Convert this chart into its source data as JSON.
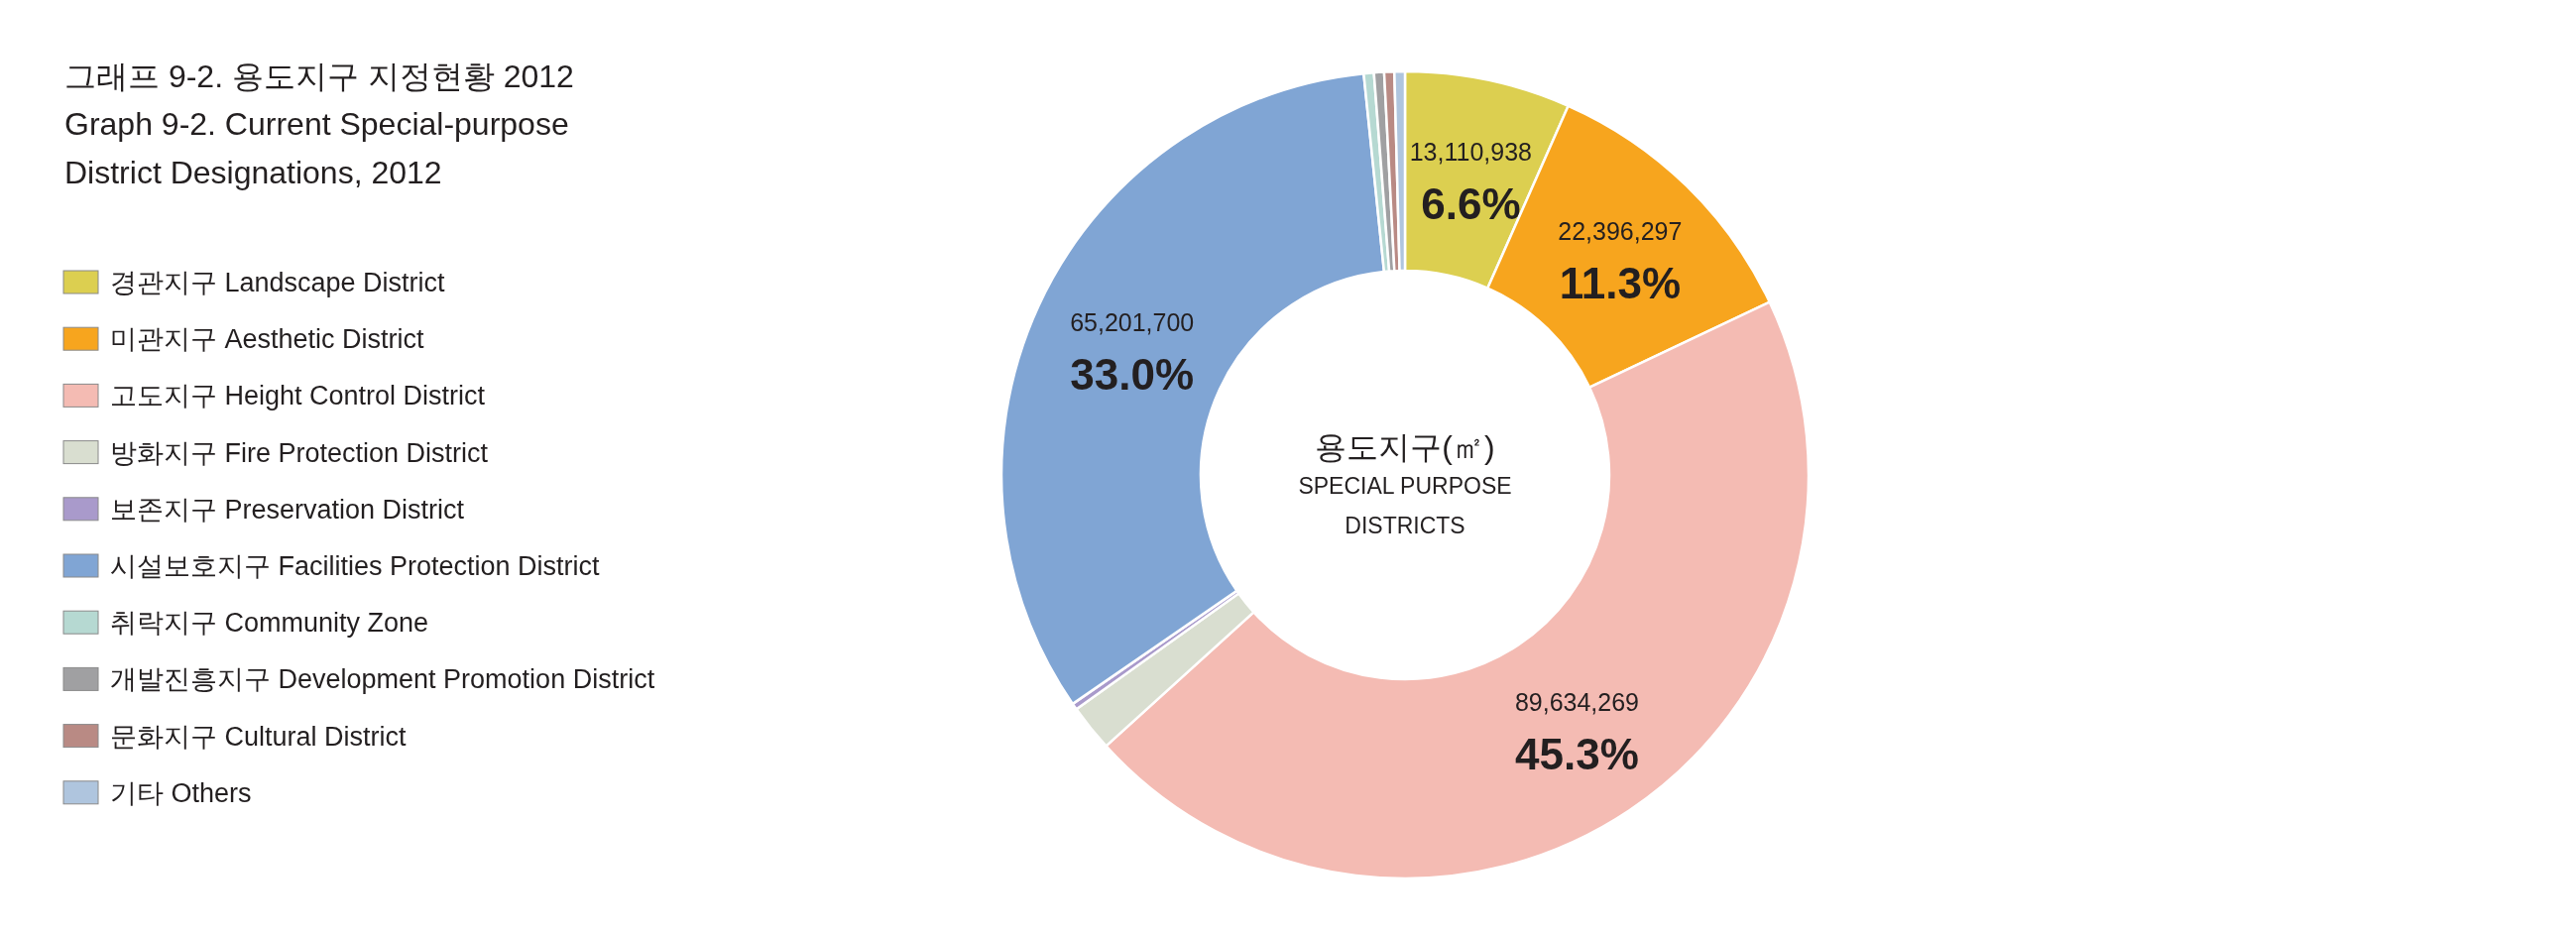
{
  "chart_data": {
    "type": "donut",
    "title": "그래프 9-2. 용도지구 지정현황 2012",
    "subtitle": "Graph 9-2. Current Special-purpose\nDistrict Designations, 2012",
    "categories": [
      "경관지구 Landscape District",
      "미관지구 Aesthetic District",
      "고도지구 Height Control District",
      "방화지구 Fire Protection District",
      "보존지구 Preservation District",
      "시설보호지구 Facilities Protection District",
      "취락지구 Community Zone",
      "개발진흥지구 Development Promotion District",
      "문화지구 Cultural District",
      "기타 Others"
    ],
    "values": [
      13110938,
      22396297,
      89634269,
      3700000,
      500000,
      65201700,
      800000,
      800000,
      800000,
      830000
    ],
    "colors": [
      "#dccf50",
      "#f7a51e",
      "#f4bbb3",
      "#d9ded0",
      "#a99acb",
      "#80a5d4",
      "#b6d9d2",
      "#a0a0a2",
      "#b98a84",
      "#afc5de"
    ],
    "value_labels": [
      "13,110,938\n6.6%",
      "22,396,297\n11.3%",
      "89,634,269\n45.3%",
      null,
      null,
      "65,201,700\n33.0%",
      null,
      null,
      null,
      null
    ],
    "annotations": [
      "용도지구(㎡)",
      "SPECIAL PURPOSE\nDISTRICTS"
    ],
    "legend": "left"
  }
}
